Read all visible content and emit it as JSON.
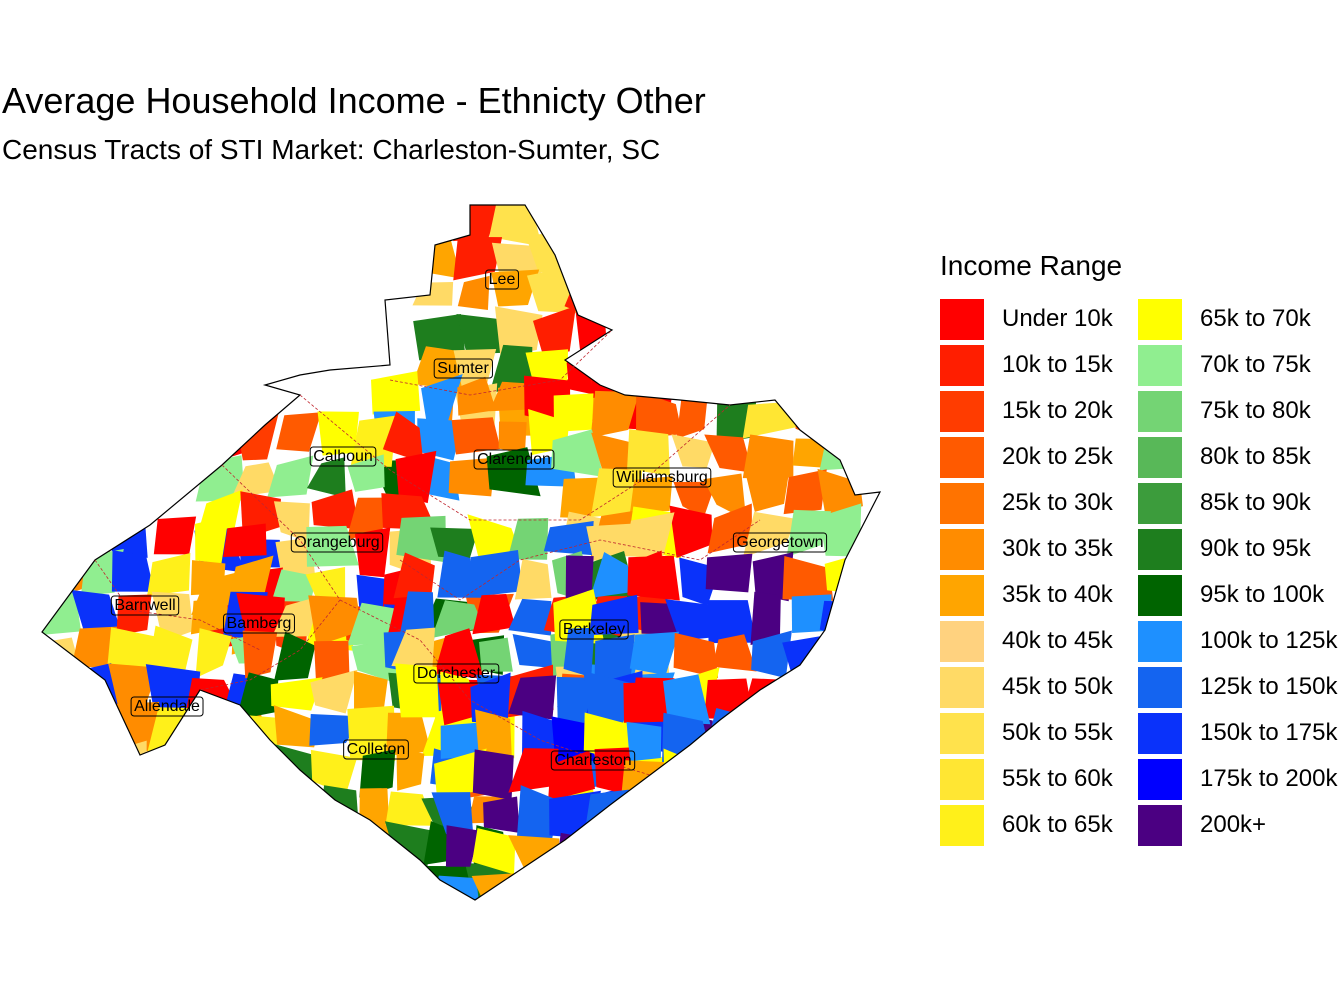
{
  "title": "Average Household Income - Ethnicty Other",
  "subtitle": "Census Tracts of STI Market: Charleston-Sumter, SC",
  "legend": {
    "title": "Income Range",
    "items": [
      {
        "label": "Under 10k",
        "color": "#FF0000"
      },
      {
        "label": "10k to 15k",
        "color": "#FF1E00"
      },
      {
        "label": "15k to 20k",
        "color": "#FF3C00"
      },
      {
        "label": "20k to 25k",
        "color": "#FF5A00"
      },
      {
        "label": "25k to 30k",
        "color": "#FF7300"
      },
      {
        "label": "30k to 35k",
        "color": "#FF8C00"
      },
      {
        "label": "35k to 40k",
        "color": "#FFA500"
      },
      {
        "label": "40k to 45k",
        "color": "#FFD27F"
      },
      {
        "label": "45k to 50k",
        "color": "#FFDA66"
      },
      {
        "label": "50k to 55k",
        "color": "#FFE24C"
      },
      {
        "label": "55k to 60k",
        "color": "#FFE633"
      },
      {
        "label": "60k to 65k",
        "color": "#FFF01A"
      },
      {
        "label": "65k to 70k",
        "color": "#FFFF00"
      },
      {
        "label": "70k to 75k",
        "color": "#90EE90"
      },
      {
        "label": "75k to 80k",
        "color": "#74D474"
      },
      {
        "label": "80k to 85k",
        "color": "#58B858"
      },
      {
        "label": "85k to 90k",
        "color": "#3C9C3C"
      },
      {
        "label": "90k to 95k",
        "color": "#1E7E1E"
      },
      {
        "label": "95k to 100k",
        "color": "#006400"
      },
      {
        "label": "100k to 125k",
        "color": "#1E90FF"
      },
      {
        "label": "125k to 150k",
        "color": "#1464F0"
      },
      {
        "label": "150k to 175k",
        "color": "#0A32FA"
      },
      {
        "label": "175k to 200k",
        "color": "#0000FF"
      },
      {
        "label": "200k+",
        "color": "#4B0082"
      }
    ]
  },
  "counties": [
    {
      "name": "Lee"
    },
    {
      "name": "Sumter"
    },
    {
      "name": "Calhoun"
    },
    {
      "name": "Clarendon"
    },
    {
      "name": "Williamsburg"
    },
    {
      "name": "Orangeburg"
    },
    {
      "name": "Georgetown"
    },
    {
      "name": "Barnwell"
    },
    {
      "name": "Bamberg"
    },
    {
      "name": "Berkeley"
    },
    {
      "name": "Dorchester"
    },
    {
      "name": "Allendale"
    },
    {
      "name": "Colleton"
    },
    {
      "name": "Charleston"
    }
  ]
}
